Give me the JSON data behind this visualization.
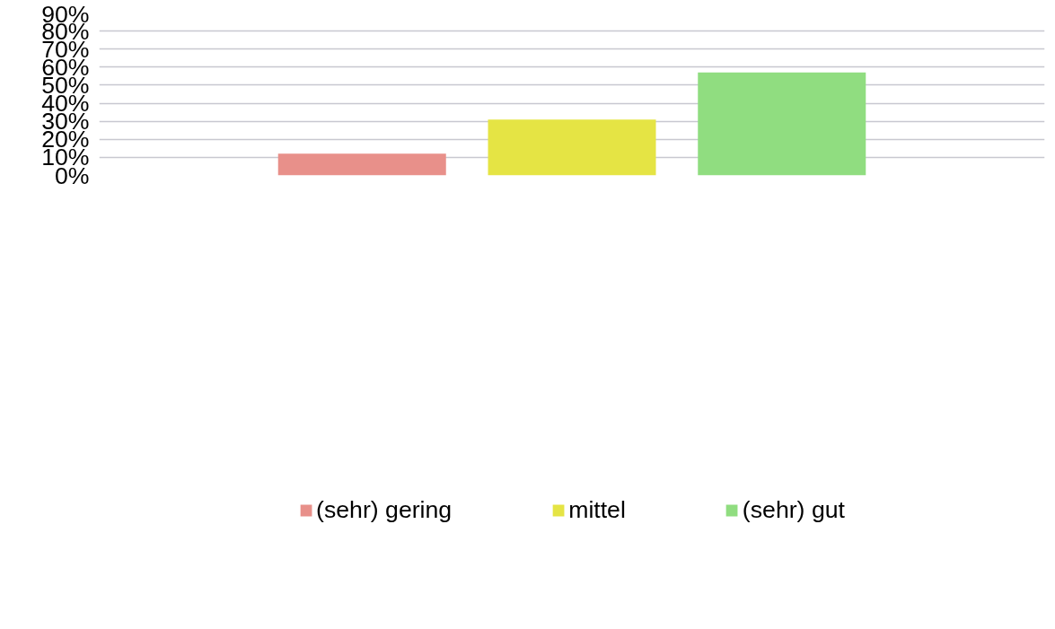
{
  "chart_data": {
    "type": "bar",
    "categories": [
      null
    ],
    "series": [
      {
        "name": "(sehr) gering",
        "color": "#e8908a",
        "values": [
          12
        ]
      },
      {
        "name": "mittel",
        "color": "#e5e444",
        "values": [
          31
        ]
      },
      {
        "name": "(sehr) gut",
        "color": "#90dd80",
        "values": [
          57
        ]
      }
    ],
    "ylim": [
      0,
      90
    ],
    "yticks": [
      {
        "value": 0,
        "label": "0%"
      },
      {
        "value": 10,
        "label": "10%"
      },
      {
        "value": 20,
        "label": "20%"
      },
      {
        "value": 30,
        "label": "30%"
      },
      {
        "value": 40,
        "label": "40%"
      },
      {
        "value": 50,
        "label": "50%"
      },
      {
        "value": 60,
        "label": "60%"
      },
      {
        "value": 70,
        "label": "70%"
      },
      {
        "value": 80,
        "label": "80%"
      },
      {
        "value": 90,
        "label": "90%"
      }
    ],
    "grid": "y",
    "legend": "bottom"
  }
}
